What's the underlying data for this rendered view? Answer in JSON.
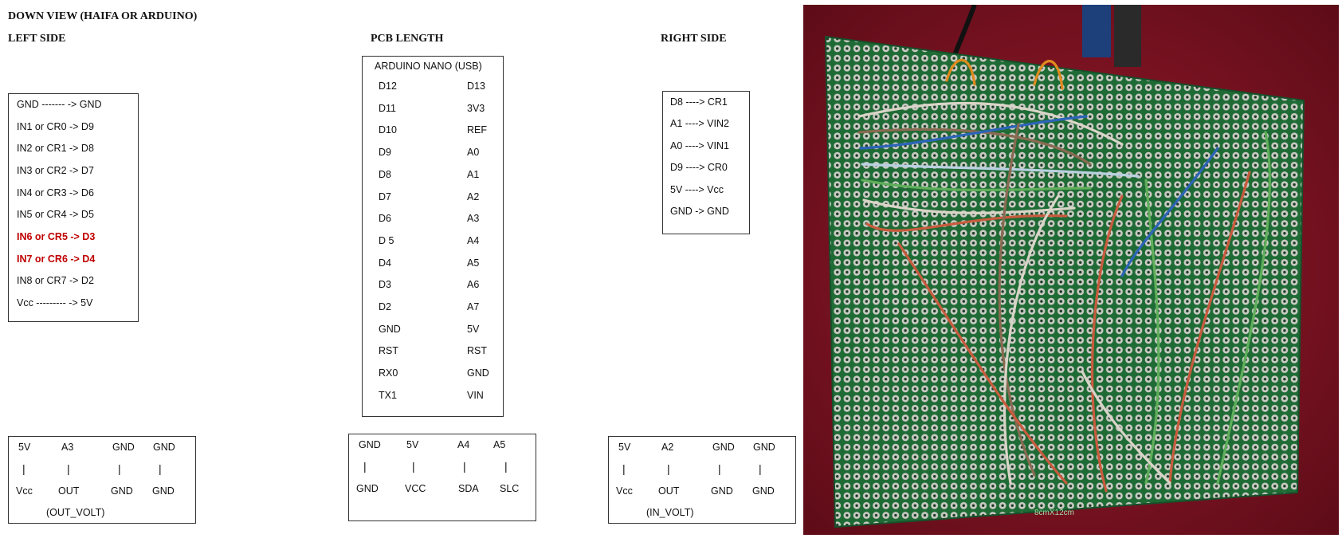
{
  "headers": {
    "main_title": "DOWN VIEW (HAIFA OR ARDUINO)",
    "left_side": "LEFT SIDE",
    "pcb_length": "PCB LENGTH",
    "right_side": "RIGHT SIDE"
  },
  "left_box": {
    "rows": [
      "GND  ------- -> GND",
      "IN1 or CR0 -> D9",
      "IN2 or CR1 -> D8",
      "IN3 or CR2 -> D7",
      "IN4 or CR3 -> D6",
      "IN5 or CR4 -> D5",
      "IN6 or CR5 -> D3",
      "IN7 or CR6 -> D4",
      "IN8 or CR7 -> D2",
      "Vcc  --------- -> 5V"
    ]
  },
  "arduino_box": {
    "title": "ARDUINO NANO (USB)",
    "left_pins": [
      "D12",
      "D11",
      "D10",
      "D9",
      "D8",
      "D7",
      "D6",
      "D 5",
      "D4",
      "D3",
      "D2",
      "GND",
      "RST",
      "RX0",
      "TX1"
    ],
    "right_pins": [
      "D13",
      "3V3",
      "REF",
      "A0",
      "A1",
      "A2",
      "A3",
      "A4",
      "A5",
      "A6",
      "A7",
      "5V",
      "RST",
      "GND",
      "VIN"
    ]
  },
  "right_box": {
    "rows": [
      "D8   ----> CR1",
      "A1   ----> VIN2",
      "A0   ----> VIN1",
      "D9   ----> CR0",
      "5V   ----> Vcc",
      "GND  -> GND"
    ]
  },
  "out_volt_box": {
    "top": [
      "5V",
      "A3",
      "GND",
      "GND"
    ],
    "pipe": "|",
    "bottom": [
      "Vcc",
      "OUT",
      "GND",
      "GND"
    ],
    "caption": "(OUT_VOLT)"
  },
  "middle_box": {
    "top": [
      "GND",
      "5V",
      "A4",
      "A5"
    ],
    "pipe": "|",
    "bottom": [
      "GND",
      "VCC",
      "SDA",
      "SLC"
    ]
  },
  "in_volt_box": {
    "top": [
      "5V",
      "A2",
      "GND",
      "GND"
    ],
    "pipe": "|",
    "bottom": [
      "Vcc",
      "OUT",
      "GND",
      "GND"
    ],
    "caption": "(IN_VOLT)"
  },
  "photo": {
    "board_label": "8cmX12cm",
    "colors": {
      "background": "#8a1424",
      "board": "#1f6b35",
      "pad": "#c9cbc4"
    }
  }
}
